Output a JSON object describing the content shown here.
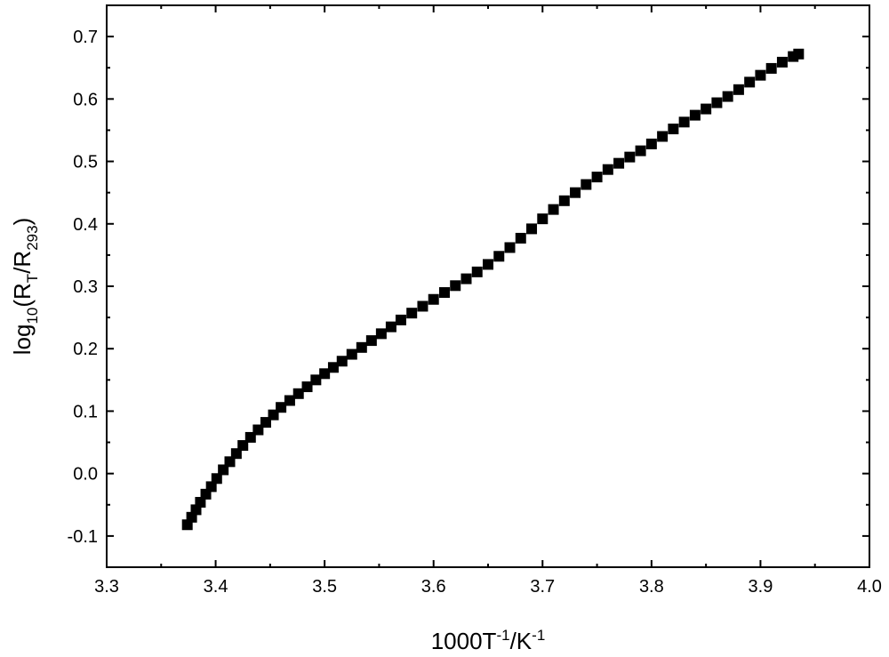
{
  "chart_data": {
    "type": "scatter",
    "title": "",
    "xlabel": {
      "main": "1000T",
      "sup1": "-1",
      "mid": "/K",
      "sup2": "-1"
    },
    "ylabel": {
      "main": "log",
      "sub1": "10",
      "mid": "(R",
      "sub2": "T",
      "mid2": "/R",
      "sub3": "293",
      "end": ")"
    },
    "xlim": [
      3.3,
      4.0
    ],
    "ylim": [
      -0.15,
      0.75
    ],
    "xticks": [
      "3.3",
      "3.4",
      "3.5",
      "3.6",
      "3.7",
      "3.8",
      "3.9",
      "4.0"
    ],
    "yticks": [
      "-0.1",
      "0.0",
      "0.1",
      "0.2",
      "0.3",
      "0.4",
      "0.5",
      "0.6",
      "0.7"
    ],
    "grid": false,
    "legend": "none",
    "marker": "square",
    "marker_color": "#000000",
    "series": [
      {
        "x": [
          3.374,
          3.378,
          3.382,
          3.386,
          3.391,
          3.396,
          3.401,
          3.407,
          3.413,
          3.419,
          3.425,
          3.432,
          3.439,
          3.446,
          3.453,
          3.46,
          3.468,
          3.476,
          3.484,
          3.492,
          3.5,
          3.508,
          3.516,
          3.525,
          3.534,
          3.543,
          3.552,
          3.561,
          3.57,
          3.58,
          3.59,
          3.6,
          3.61,
          3.62,
          3.63,
          3.64,
          3.65,
          3.66,
          3.67,
          3.68,
          3.69,
          3.7,
          3.71,
          3.72,
          3.73,
          3.74,
          3.75,
          3.76,
          3.77,
          3.78,
          3.79,
          3.8,
          3.81,
          3.82,
          3.83,
          3.84,
          3.85,
          3.86,
          3.87,
          3.88,
          3.89,
          3.9,
          3.91,
          3.92,
          3.93,
          3.935
        ],
        "y": [
          -0.082,
          -0.07,
          -0.058,
          -0.046,
          -0.033,
          -0.021,
          -0.008,
          0.006,
          0.019,
          0.032,
          0.045,
          0.058,
          0.07,
          0.082,
          0.094,
          0.106,
          0.117,
          0.128,
          0.139,
          0.15,
          0.16,
          0.17,
          0.18,
          0.191,
          0.202,
          0.213,
          0.224,
          0.235,
          0.246,
          0.257,
          0.268,
          0.279,
          0.29,
          0.301,
          0.312,
          0.323,
          0.335,
          0.348,
          0.362,
          0.377,
          0.392,
          0.408,
          0.423,
          0.437,
          0.45,
          0.463,
          0.475,
          0.487,
          0.497,
          0.507,
          0.517,
          0.528,
          0.54,
          0.552,
          0.563,
          0.574,
          0.584,
          0.594,
          0.604,
          0.615,
          0.627,
          0.638,
          0.649,
          0.659,
          0.668,
          0.672
        ]
      }
    ]
  }
}
